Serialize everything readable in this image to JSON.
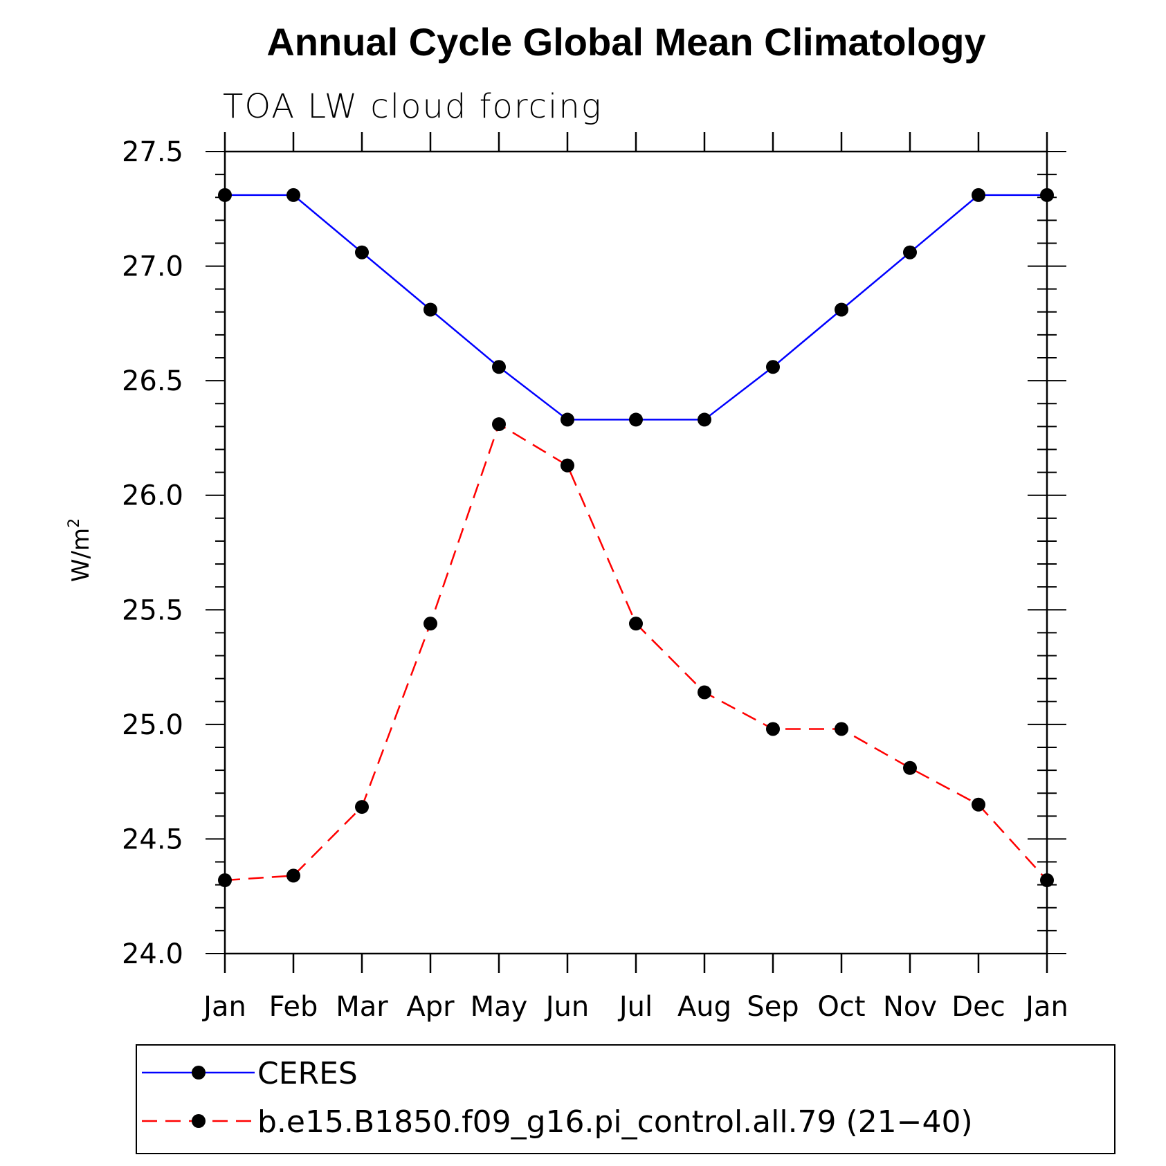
{
  "chart_data": {
    "type": "line",
    "title": "Annual Cycle Global Mean Climatology",
    "subtitle": "TOA LW cloud forcing",
    "ylabel": "W/m",
    "ylabel_superscript": "2",
    "ylim": [
      24.0,
      27.5
    ],
    "yticks": [
      24.0,
      24.5,
      25.0,
      25.5,
      26.0,
      26.5,
      27.0,
      27.5
    ],
    "ytick_labels": [
      "24.0",
      "24.5",
      "25.0",
      "25.5",
      "26.0",
      "26.5",
      "27.0",
      "27.5"
    ],
    "categories": [
      "Jan",
      "Feb",
      "Mar",
      "Apr",
      "May",
      "Jun",
      "Jul",
      "Aug",
      "Sep",
      "Oct",
      "Nov",
      "Dec",
      "Jan"
    ],
    "series": [
      {
        "name": "CERES",
        "color": "#0000ff",
        "dash": "solid",
        "values": [
          27.31,
          27.31,
          27.06,
          26.81,
          26.56,
          26.33,
          26.33,
          26.33,
          26.56,
          26.81,
          27.06,
          27.31,
          27.31
        ]
      },
      {
        "name": "b.e15.B1850.f09_g16.pi_control.all.79 (21−40)",
        "color": "#ff0000",
        "dash": "dashed",
        "values": [
          24.32,
          24.34,
          24.64,
          25.44,
          26.31,
          26.13,
          25.44,
          25.14,
          24.98,
          24.98,
          24.81,
          24.65,
          24.32
        ]
      }
    ],
    "legend_position": "bottom"
  }
}
